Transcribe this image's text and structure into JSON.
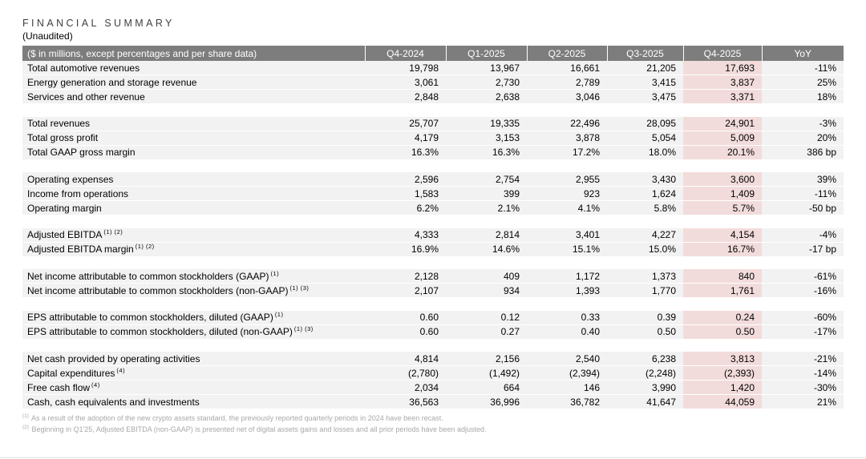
{
  "title": "FINANCIAL SUMMARY",
  "subtitle": "(Unaudited)",
  "table": {
    "header_label": "($ in millions, except percentages and per share data)",
    "columns": [
      "Q4-2024",
      "Q1-2025",
      "Q2-2025",
      "Q3-2025",
      "Q4-2025",
      "YoY"
    ],
    "highlight_column": "Q4-2025",
    "sections": [
      {
        "rows": [
          {
            "label": "Total automotive revenues",
            "sup": "",
            "values": [
              "19,798",
              "13,967",
              "16,661",
              "21,205",
              "17,693",
              "-11%"
            ]
          },
          {
            "label": "Energy generation and storage revenue",
            "sup": "",
            "values": [
              "3,061",
              "2,730",
              "2,789",
              "3,415",
              "3,837",
              "25%"
            ]
          },
          {
            "label": "Services and other revenue",
            "sup": "",
            "values": [
              "2,848",
              "2,638",
              "3,046",
              "3,475",
              "3,371",
              "18%"
            ]
          }
        ]
      },
      {
        "rows": [
          {
            "label": "Total revenues",
            "sup": "",
            "values": [
              "25,707",
              "19,335",
              "22,496",
              "28,095",
              "24,901",
              "-3%"
            ]
          },
          {
            "label": "Total gross profit",
            "sup": "",
            "values": [
              "4,179",
              "3,153",
              "3,878",
              "5,054",
              "5,009",
              "20%"
            ]
          },
          {
            "label": "Total GAAP gross margin",
            "sup": "",
            "values": [
              "16.3%",
              "16.3%",
              "17.2%",
              "18.0%",
              "20.1%",
              "386 bp"
            ]
          }
        ]
      },
      {
        "rows": [
          {
            "label": "Operating expenses",
            "sup": "",
            "values": [
              "2,596",
              "2,754",
              "2,955",
              "3,430",
              "3,600",
              "39%"
            ]
          },
          {
            "label": "Income from operations",
            "sup": "",
            "values": [
              "1,583",
              "399",
              "923",
              "1,624",
              "1,409",
              "-11%"
            ]
          },
          {
            "label": "Operating margin",
            "sup": "",
            "values": [
              "6.2%",
              "2.1%",
              "4.1%",
              "5.8%",
              "5.7%",
              "-50 bp"
            ]
          }
        ]
      },
      {
        "rows": [
          {
            "label": "Adjusted EBITDA",
            "sup": "(1) (2)",
            "values": [
              "4,333",
              "2,814",
              "3,401",
              "4,227",
              "4,154",
              "-4%"
            ]
          },
          {
            "label": "Adjusted EBITDA margin",
            "sup": "(1) (2)",
            "values": [
              "16.9%",
              "14.6%",
              "15.1%",
              "15.0%",
              "16.7%",
              "-17 bp"
            ]
          }
        ]
      },
      {
        "rows": [
          {
            "label": "Net income attributable to common stockholders (GAAP)",
            "sup": "(1)",
            "values": [
              "2,128",
              "409",
              "1,172",
              "1,373",
              "840",
              "-61%"
            ]
          },
          {
            "label": "Net income attributable to common stockholders (non-GAAP)",
            "sup": "(1) (3)",
            "values": [
              "2,107",
              "934",
              "1,393",
              "1,770",
              "1,761",
              "-16%"
            ]
          }
        ]
      },
      {
        "rows": [
          {
            "label": "EPS attributable to common stockholders, diluted (GAAP)",
            "sup": "(1)",
            "values": [
              "0.60",
              "0.12",
              "0.33",
              "0.39",
              "0.24",
              "-60%"
            ]
          },
          {
            "label": "EPS attributable to common stockholders, diluted (non-GAAP)",
            "sup": "(1) (3)",
            "values": [
              "0.60",
              "0.27",
              "0.40",
              "0.50",
              "0.50",
              "-17%"
            ]
          }
        ]
      },
      {
        "rows": [
          {
            "label": "Net cash provided by operating activities",
            "sup": "",
            "values": [
              "4,814",
              "2,156",
              "2,540",
              "6,238",
              "3,813",
              "-21%"
            ]
          },
          {
            "label": "Capital expenditures",
            "sup": "(4)",
            "values": [
              "(2,780)",
              "(1,492)",
              "(2,394)",
              "(2,248)",
              "(2,393)",
              "-14%"
            ]
          },
          {
            "label": "Free cash flow",
            "sup": "(4)",
            "values": [
              "2,034",
              "664",
              "146",
              "3,990",
              "1,420",
              "-30%"
            ]
          },
          {
            "label": "Cash, cash equivalents and investments",
            "sup": "",
            "values": [
              "36,563",
              "36,996",
              "36,782",
              "41,647",
              "44,059",
              "21%"
            ]
          }
        ]
      }
    ]
  },
  "footnotes": [
    {
      "marker": "(1)",
      "text": "As a result of the adoption of the new crypto assets standard, the previously reported quarterly periods in 2024 have been recast."
    },
    {
      "marker": "(2)",
      "text": "Beginning in Q1'25, Adjusted EBITDA (non-GAAP) is presented net of digital assets gains and losses and all prior periods have been adjusted."
    }
  ],
  "colors": {
    "header_bg": "#7d7d7d",
    "row_bg": "#f2f2f2",
    "highlight_bg": "#f2dcdb",
    "footnote_text": "#a8a8a8",
    "title_text": "#3f3f3f"
  }
}
